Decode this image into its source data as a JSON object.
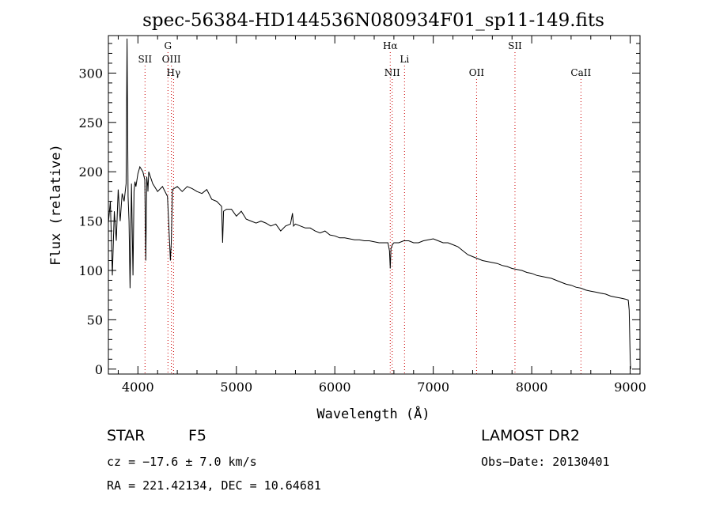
{
  "chart_data": {
    "type": "line",
    "title": "spec-56384-HD144536N080934F01_sp11-149.fits",
    "xlabel": "Wavelength (Å)",
    "ylabel": "Flux (relative)",
    "xlim": [
      3700,
      9100
    ],
    "ylim": [
      -5,
      338
    ],
    "x_ticks": [
      4000,
      5000,
      6000,
      7000,
      8000,
      9000
    ],
    "y_ticks": [
      0,
      50,
      100,
      150,
      200,
      250,
      300
    ],
    "grid": false,
    "series": [
      {
        "x": [
          3700,
          3720,
          3740,
          3760,
          3780,
          3800,
          3820,
          3840,
          3860,
          3880,
          3890,
          3900,
          3910,
          3920,
          3935,
          3950,
          3960,
          3970,
          3980,
          4000,
          4020,
          4050,
          4070,
          4080,
          4090,
          4100,
          4102,
          4110,
          4150,
          4200,
          4250,
          4300,
          4330,
          4340,
          4350,
          4400,
          4450,
          4500,
          4550,
          4600,
          4650,
          4700,
          4750,
          4800,
          4850,
          4860,
          4870,
          4900,
          4950,
          5000,
          5050,
          5100,
          5150,
          5200,
          5250,
          5300,
          5350,
          5400,
          5450,
          5500,
          5550,
          5570,
          5580,
          5600,
          5650,
          5700,
          5750,
          5800,
          5850,
          5900,
          5950,
          6000,
          6050,
          6100,
          6150,
          6200,
          6250,
          6300,
          6350,
          6400,
          6450,
          6500,
          6540,
          6555,
          6563,
          6570,
          6585,
          6600,
          6650,
          6700,
          6750,
          6800,
          6850,
          6900,
          6950,
          7000,
          7050,
          7100,
          7150,
          7200,
          7250,
          7300,
          7350,
          7400,
          7450,
          7500,
          7550,
          7600,
          7650,
          7700,
          7750,
          7800,
          7850,
          7900,
          7950,
          8000,
          8050,
          8100,
          8150,
          8200,
          8250,
          8300,
          8350,
          8400,
          8450,
          8500,
          8550,
          8600,
          8650,
          8700,
          8750,
          8800,
          8850,
          8900,
          8950,
          8980,
          8990,
          9000,
          9005
        ],
        "y": [
          148,
          170,
          95,
          160,
          130,
          182,
          150,
          178,
          170,
          188,
          335,
          175,
          150,
          82,
          188,
          95,
          180,
          190,
          185,
          198,
          205,
          200,
          192,
          110,
          195,
          185,
          180,
          200,
          188,
          180,
          185,
          175,
          110,
          130,
          182,
          185,
          180,
          185,
          183,
          180,
          178,
          182,
          172,
          170,
          165,
          128,
          160,
          162,
          162,
          155,
          160,
          152,
          150,
          148,
          150,
          148,
          145,
          147,
          140,
          145,
          147,
          158,
          145,
          147,
          145,
          143,
          143,
          140,
          138,
          140,
          136,
          135,
          133,
          133,
          132,
          131,
          131,
          130,
          130,
          129,
          128,
          128,
          128,
          120,
          102,
          122,
          126,
          128,
          128,
          130,
          130,
          128,
          128,
          130,
          131,
          132,
          130,
          128,
          128,
          126,
          124,
          120,
          116,
          114,
          112,
          110,
          109,
          108,
          107,
          105,
          104,
          102,
          101,
          100,
          98,
          97,
          95,
          94,
          93,
          92,
          90,
          88,
          86,
          85,
          83,
          82,
          80,
          79,
          78,
          77,
          76,
          74,
          73,
          72,
          71,
          70,
          60,
          10,
          0
        ]
      }
    ],
    "lines": [
      {
        "label": "SII",
        "wave": 4072,
        "row": 1
      },
      {
        "label": "G",
        "wave": 4305,
        "row": 0
      },
      {
        "label": "OIII",
        "wave": 4340,
        "row": 1
      },
      {
        "label": "Hγ",
        "wave": 4362,
        "row": 2
      },
      {
        "label": "Hα",
        "wave": 6563,
        "row": 0
      },
      {
        "label": "Li",
        "wave": 6708,
        "row": 1
      },
      {
        "label": "NII",
        "wave": 6583,
        "row": 2
      },
      {
        "label": "OII",
        "wave": 7440,
        "row": 2
      },
      {
        "label": "SII",
        "wave": 7830,
        "row": 0
      },
      {
        "label": "CaII",
        "wave": 8500,
        "row": 2
      }
    ],
    "line_color": "#cc0000",
    "info": {
      "object": "STAR",
      "subclass": "F5",
      "cz": "cz = −17.6 ± 7.0 km/s",
      "radec": "RA = 221.42134, DEC =  10.64681",
      "survey": "LAMOST DR2",
      "obsdate": "Obs−Date: 20130401"
    }
  }
}
